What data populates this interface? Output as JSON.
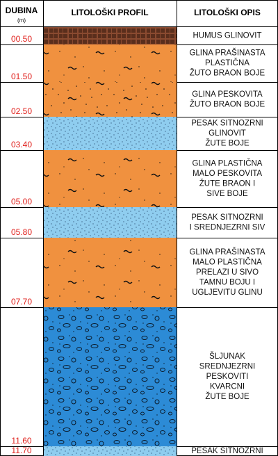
{
  "header": {
    "depth": "DUBINA",
    "depth_unit": "(m)",
    "profile": "LITOLOŠKI PROFIL",
    "description": "LITOLOŠKI OPIS"
  },
  "layers": [
    {
      "depth": "00.50",
      "description": [
        "HUMUS GLINOVIT"
      ]
    },
    {
      "depth": "01.50",
      "description": [
        "GLINA PRAŠINASTA",
        "PLASTIČNA",
        "ŽUTO BRAON BOJE"
      ]
    },
    {
      "depth": "02.50",
      "description": [
        "GLINA PESKOVITA",
        "ŽUTO BRAON BOJE"
      ]
    },
    {
      "depth": "03.40",
      "description": [
        "PESAK SITNOZRNI",
        "GLINOVIT",
        "ŽUTE BOJE"
      ]
    },
    {
      "depth": "05.00",
      "description": [
        "GLINA PLASTIČNA",
        "MALO PESKOVITA",
        "ŽUTE BRAON I",
        "SIVE BOJE"
      ]
    },
    {
      "depth": "05.80",
      "description": [
        "PESAK SITNOZRNI",
        "I SREDNJEZRNI SIV"
      ]
    },
    {
      "depth": "07.70",
      "description": [
        "GLINA PRAŠINASTA",
        "MALO PLASTIČNA",
        "PRELAZI U SIVO",
        "TAMNU BOJU I",
        "UGLJEVITU GLINU"
      ]
    },
    {
      "depth": "11.60",
      "description": [
        "ŠLJUNAK",
        "SREDNJEZRNI",
        "PESKOVITI",
        "KVARCNI",
        "ŽUTE BOJE"
      ]
    },
    {
      "depth": "11.70",
      "description": [
        "PESAK SITNOZRNI"
      ]
    }
  ]
}
